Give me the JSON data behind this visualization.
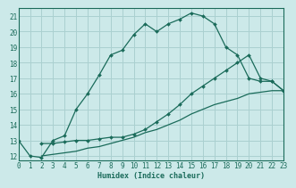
{
  "xlabel": "Humidex (Indice chaleur)",
  "xlim": [
    0,
    23
  ],
  "ylim": [
    11.7,
    21.5
  ],
  "yticks": [
    12,
    13,
    14,
    15,
    16,
    17,
    18,
    19,
    20,
    21
  ],
  "xticks": [
    0,
    1,
    2,
    3,
    4,
    5,
    6,
    7,
    8,
    9,
    10,
    11,
    12,
    13,
    14,
    15,
    16,
    17,
    18,
    19,
    20,
    21,
    22,
    23
  ],
  "bg_color": "#cce9e9",
  "grid_color": "#aad0d0",
  "line_color": "#1a6b5a",
  "lines": [
    {
      "comment": "main wavy line - most variation, peaks at x=15",
      "x": [
        0,
        1,
        2,
        3,
        4,
        5,
        6,
        7,
        8,
        9,
        10,
        11,
        12,
        13,
        14,
        15,
        16,
        17,
        18,
        19,
        20,
        21,
        22,
        23
      ],
      "y": [
        13.0,
        12.0,
        11.9,
        13.0,
        13.3,
        15.0,
        16.0,
        17.2,
        18.5,
        18.8,
        19.8,
        20.5,
        20.0,
        20.5,
        20.8,
        21.2,
        21.0,
        20.5,
        19.0,
        18.5,
        17.0,
        16.8,
        16.8,
        16.2
      ],
      "has_markers": true
    },
    {
      "comment": "middle line - peaks around x=20 at ~18.5, then drops slightly",
      "x": [
        2,
        3,
        4,
        5,
        6,
        7,
        8,
        9,
        10,
        11,
        12,
        13,
        14,
        15,
        16,
        17,
        18,
        19,
        20,
        21,
        22,
        23
      ],
      "y": [
        12.8,
        12.8,
        12.9,
        13.0,
        13.0,
        13.1,
        13.2,
        13.2,
        13.4,
        13.7,
        14.2,
        14.7,
        15.3,
        16.0,
        16.5,
        17.0,
        17.5,
        18.0,
        18.5,
        17.0,
        16.8,
        16.2
      ],
      "has_markers": true
    },
    {
      "comment": "bottom nearly straight line - slowly rising from ~12 to ~16",
      "x": [
        2,
        3,
        4,
        5,
        6,
        7,
        8,
        9,
        10,
        11,
        12,
        13,
        14,
        15,
        16,
        17,
        18,
        19,
        20,
        21,
        22,
        23
      ],
      "y": [
        12.0,
        12.1,
        12.2,
        12.3,
        12.5,
        12.6,
        12.8,
        13.0,
        13.2,
        13.5,
        13.7,
        14.0,
        14.3,
        14.7,
        15.0,
        15.3,
        15.5,
        15.7,
        16.0,
        16.1,
        16.2,
        16.2
      ],
      "has_markers": false
    }
  ]
}
